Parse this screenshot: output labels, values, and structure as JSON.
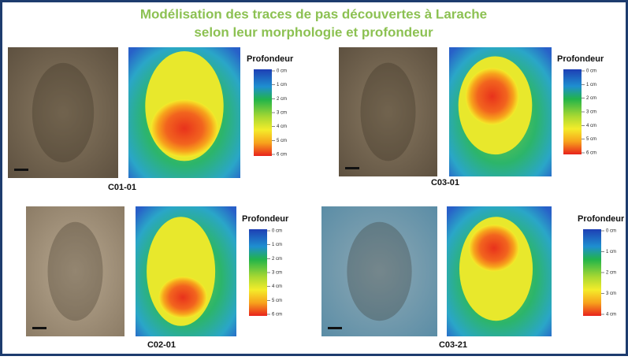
{
  "header": {
    "title_lines": [
      "Modélisation des traces de pas découvertes à Larache",
      "selon leur morphologie et profondeur"
    ]
  },
  "panels": [
    {
      "label": "C01-01",
      "legend_title": "Profondeur",
      "scale": [
        "0 cm",
        "1 cm",
        "2 cm",
        "3 cm",
        "4 cm",
        "5 cm",
        "6 cm"
      ]
    },
    {
      "label": "C03-01",
      "legend_title": "Profondeur",
      "scale": [
        "0 cm",
        "1 cm",
        "2 cm",
        "3 cm",
        "4 cm",
        "5 cm",
        "6 cm"
      ]
    },
    {
      "label": "C02-01",
      "legend_title": "Profondeur",
      "scale": [
        "0 cm",
        "1 cm",
        "2 cm",
        "3 cm",
        "4 cm",
        "5 cm",
        "6 cm"
      ]
    },
    {
      "label": "C03-21",
      "legend_title": "Profondeur",
      "scale": [
        "0 cm",
        "1 cm",
        "2 cm",
        "3 cm",
        "4 cm"
      ]
    }
  ]
}
